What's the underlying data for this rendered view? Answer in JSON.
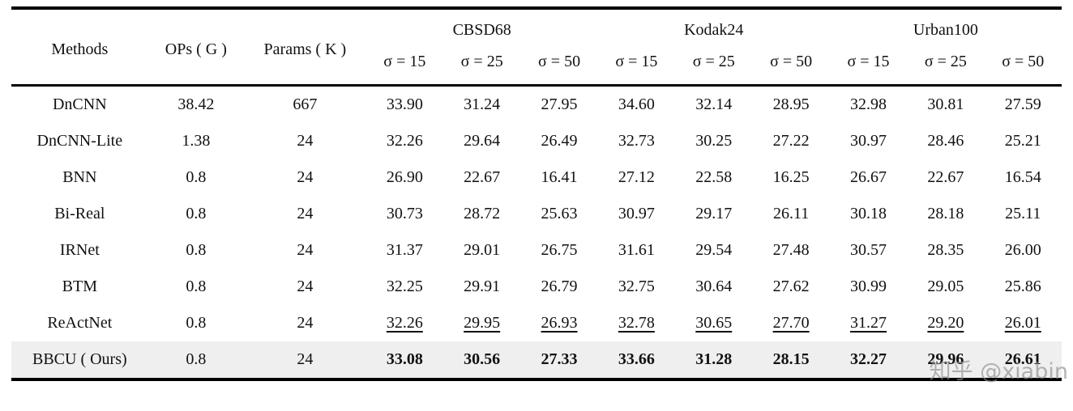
{
  "table": {
    "fixed_headers": {
      "methods": "Methods",
      "ops": "OPs ( G )",
      "params": "Params ( K )"
    },
    "groups": [
      {
        "label": "CBSD68",
        "subcols": [
          "σ = 15",
          "σ = 25",
          "σ = 50"
        ]
      },
      {
        "label": "Kodak24",
        "subcols": [
          "σ = 15",
          "σ = 25",
          "σ = 50"
        ]
      },
      {
        "label": "Urban100",
        "subcols": [
          "σ = 15",
          "σ = 25",
          "σ = 50"
        ]
      }
    ],
    "rows": [
      {
        "method": "DnCNN",
        "ops": "38.42",
        "params": "667",
        "values": [
          "33.90",
          "31.24",
          "27.95",
          "34.60",
          "32.14",
          "28.95",
          "32.98",
          "30.81",
          "27.59"
        ],
        "emphasis": "none",
        "highlight": false
      },
      {
        "method": "DnCNN-Lite",
        "ops": "1.38",
        "params": "24",
        "values": [
          "32.26",
          "29.64",
          "26.49",
          "32.73",
          "30.25",
          "27.22",
          "30.97",
          "28.46",
          "25.21"
        ],
        "emphasis": "none",
        "highlight": false
      },
      {
        "method": "BNN",
        "ops": "0.8",
        "params": "24",
        "values": [
          "26.90",
          "22.67",
          "16.41",
          "27.12",
          "22.58",
          "16.25",
          "26.67",
          "22.67",
          "16.54"
        ],
        "emphasis": "none",
        "highlight": false
      },
      {
        "method": "Bi-Real",
        "ops": "0.8",
        "params": "24",
        "values": [
          "30.73",
          "28.72",
          "25.63",
          "30.97",
          "29.17",
          "26.11",
          "30.18",
          "28.18",
          "25.11"
        ],
        "emphasis": "none",
        "highlight": false
      },
      {
        "method": "IRNet",
        "ops": "0.8",
        "params": "24",
        "values": [
          "31.37",
          "29.01",
          "26.75",
          "31.61",
          "29.54",
          "27.48",
          "30.57",
          "28.35",
          "26.00"
        ],
        "emphasis": "none",
        "highlight": false
      },
      {
        "method": "BTM",
        "ops": "0.8",
        "params": "24",
        "values": [
          "32.25",
          "29.91",
          "26.79",
          "32.75",
          "30.64",
          "27.62",
          "30.99",
          "29.05",
          "25.86"
        ],
        "emphasis": "none",
        "highlight": false
      },
      {
        "method": "ReActNet",
        "ops": "0.8",
        "params": "24",
        "values": [
          "32.26",
          "29.95",
          "26.93",
          "32.78",
          "30.65",
          "27.70",
          "31.27",
          "29.20",
          "26.01"
        ],
        "emphasis": "underline",
        "highlight": false
      },
      {
        "method": "BBCU ( Ours)",
        "ops": "0.8",
        "params": "24",
        "values": [
          "33.08",
          "30.56",
          "27.33",
          "33.66",
          "31.28",
          "28.15",
          "32.27",
          "29.96",
          "26.61"
        ],
        "emphasis": "bold",
        "highlight": true
      }
    ]
  },
  "colors": {
    "highlight_row": "#efefef",
    "rule": "#000000"
  },
  "watermark": {
    "text": "知乎 @xiabin"
  }
}
